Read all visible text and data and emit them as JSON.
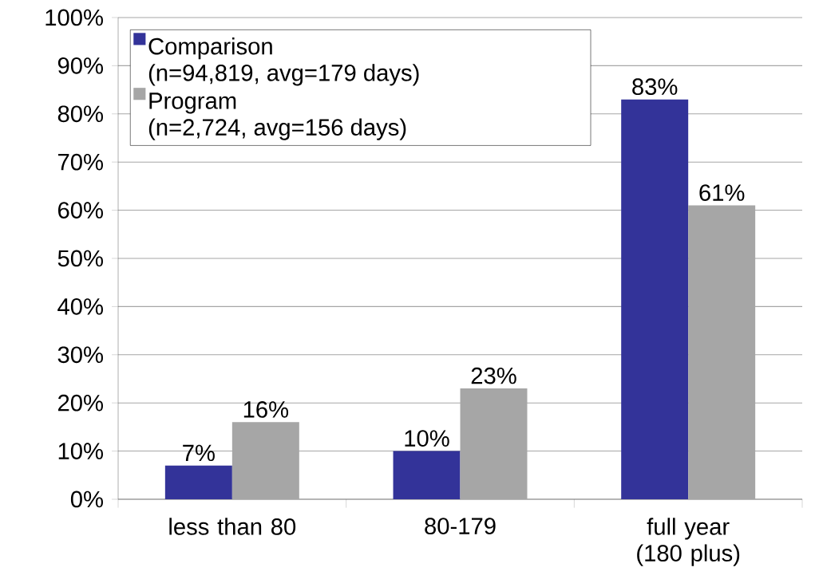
{
  "chart_data": {
    "type": "bar",
    "categories": [
      "less than 80",
      "80-179",
      "full year (180 plus)"
    ],
    "series": [
      {
        "name": "Comparison (n=94,819, avg=179 days)",
        "color": "#333399",
        "values": [
          7,
          10,
          83
        ],
        "value_labels": [
          "7%",
          "10%",
          "83%"
        ]
      },
      {
        "name": "Program (n=2,724, avg=156 days)",
        "color": "#a6a6a6",
        "values": [
          16,
          23,
          61
        ],
        "value_labels": [
          "16%",
          "23%",
          "61%"
        ]
      }
    ],
    "ylim": [
      0,
      100
    ],
    "yticks": [
      {
        "value": 0,
        "label": "0%"
      },
      {
        "value": 10,
        "label": "10%"
      },
      {
        "value": 20,
        "label": "20%"
      },
      {
        "value": 30,
        "label": "30%"
      },
      {
        "value": 40,
        "label": "40%"
      },
      {
        "value": 50,
        "label": "50%"
      },
      {
        "value": 60,
        "label": "60%"
      },
      {
        "value": 70,
        "label": "70%"
      },
      {
        "value": 80,
        "label": "80%"
      },
      {
        "value": 90,
        "label": "90%"
      },
      {
        "value": 100,
        "label": "100%"
      }
    ],
    "grid": "y",
    "legend": "top left"
  }
}
